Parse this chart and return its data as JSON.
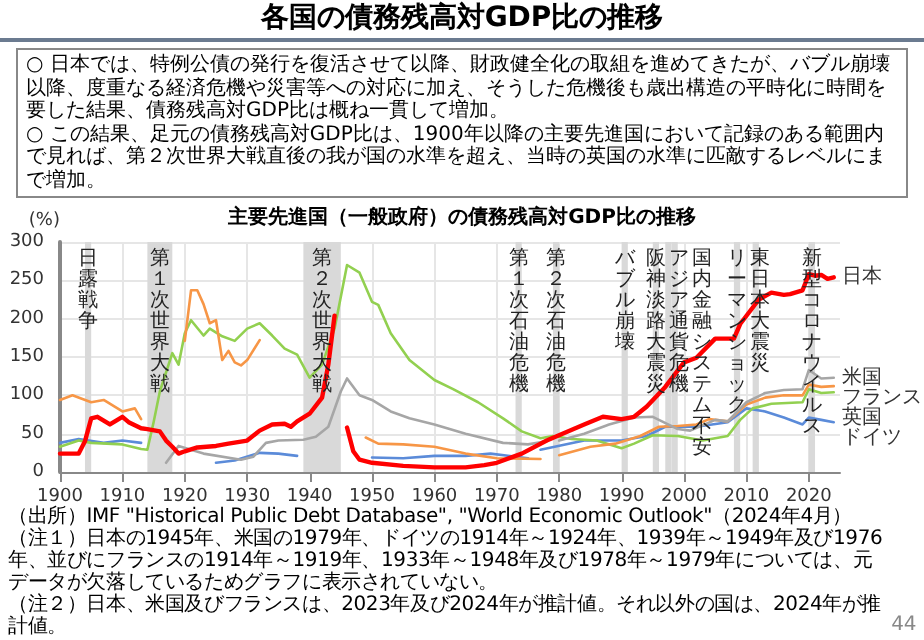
{
  "chart_data": {
    "type": "line",
    "title": "各国の債務残高対GDP比の推移",
    "subtitle": "主要先進国（一般政府）の債務残高対GDP比の推移",
    "ylabel": "(%)",
    "xlim": [
      1900,
      2025
    ],
    "xticks": [
      1900,
      1910,
      1920,
      1930,
      1940,
      1950,
      1960,
      1970,
      1980,
      1990,
      2000,
      2010,
      2020
    ],
    "ylim": [
      0,
      300
    ],
    "yticks": [
      0,
      50,
      100,
      150,
      200,
      250,
      300
    ],
    "grid": true,
    "marker": "none",
    "series": [
      {
        "name": "日本",
        "color": "#ff0000",
        "x": [
          1900,
          1903,
          1904,
          1905,
          1906,
          1908,
          1910,
          1911,
          1913,
          1914,
          1916,
          1917,
          1918,
          1919,
          1920,
          1922,
          1925,
          1927,
          1930,
          1932,
          1934,
          1936,
          1937,
          1938,
          1940,
          1942,
          1943,
          1944,
          1945,
          1946,
          1947,
          1948,
          1950,
          1955,
          1960,
          1965,
          1968,
          1970,
          1974,
          1978,
          1984,
          1987,
          1990,
          1992,
          1994,
          1997,
          2000,
          2002,
          2005,
          2008,
          2009,
          2012,
          2014,
          2016,
          2017,
          2019,
          2020,
          2021,
          2022,
          2023,
          2024
        ],
        "values": [
          24,
          24,
          40,
          70,
          72,
          62,
          72,
          65,
          57,
          56,
          53,
          41,
          33,
          24,
          27,
          32,
          34,
          37,
          41,
          54,
          62,
          63,
          59,
          66,
          76,
          97,
          140,
          204,
          null,
          58,
          27,
          16,
          12,
          8,
          6,
          6,
          9,
          12,
          24,
          41,
          62,
          72,
          69,
          72,
          85,
          111,
          143,
          149,
          174,
          174,
          193,
          225,
          234,
          231,
          232,
          237,
          258,
          256,
          257,
          252,
          254
        ]
      },
      {
        "name": "米国",
        "color": "#a6a6a6",
        "x": [
          1917,
          1919,
          1923,
          1929,
          1931,
          1933,
          1935,
          1939,
          1941,
          1943,
          1945,
          1946,
          1948,
          1950,
          1953,
          1956,
          1960,
          1965,
          1971,
          1975,
          1978,
          1979,
          1980,
          1984,
          1988,
          1992,
          1995,
          1999,
          2001,
          2005,
          2007,
          2010,
          2013,
          2016,
          2019,
          2020,
          2022,
          2024
        ],
        "values": [
          12,
          34,
          24,
          16,
          20,
          38,
          41,
          42,
          46,
          59,
          105,
          122,
          100,
          94,
          79,
          70,
          62,
          50,
          38,
          36,
          40,
          null,
          41,
          50,
          62,
          71,
          72,
          56,
          54,
          68,
          66,
          91,
          103,
          107,
          108,
          133,
          122,
          123
        ]
      },
      {
        "name": "フランス",
        "color": "#f79646",
        "x": [
          1900,
          1902,
          1905,
          1907,
          1910,
          1912,
          1913,
          1914,
          1920,
          1921,
          1922,
          1923,
          1924,
          1925,
          1926,
          1927,
          1928,
          1929,
          1930,
          1932,
          1933,
          1949,
          1951,
          1955,
          1960,
          1965,
          1970,
          1977,
          1978,
          1980,
          1985,
          1989,
          1993,
          1996,
          1999,
          2002,
          2004,
          2007,
          2010,
          2013,
          2016,
          2019,
          2020,
          2022,
          2024
        ],
        "values": [
          94,
          100,
          91,
          94,
          79,
          83,
          69,
          null,
          171,
          237,
          237,
          219,
          194,
          198,
          146,
          158,
          143,
          139,
          146,
          172,
          null,
          45,
          37,
          36,
          33,
          24,
          18,
          17,
          null,
          22,
          33,
          37,
          47,
          59,
          60,
          62,
          69,
          66,
          88,
          97,
          100,
          100,
          114,
          111,
          112
        ]
      },
      {
        "name": "英国",
        "color": "#92d050",
        "x": [
          1900,
          1903,
          1905,
          1910,
          1913,
          1914,
          1915,
          1916,
          1918,
          1919,
          1920,
          1921,
          1923,
          1924,
          1926,
          1928,
          1930,
          1932,
          1934,
          1936,
          1938,
          1940,
          1942,
          1944,
          1946,
          1948,
          1950,
          1951,
          1953,
          1956,
          1960,
          1963,
          1967,
          1971,
          1974,
          1977,
          1979,
          1982,
          1986,
          1990,
          1992,
          1995,
          1999,
          2003,
          2007,
          2009,
          2011,
          2014,
          2019,
          2020,
          2022,
          2024
        ],
        "values": [
          33,
          41,
          38,
          36,
          30,
          29,
          65,
          105,
          155,
          140,
          181,
          198,
          178,
          187,
          177,
          171,
          187,
          194,
          178,
          161,
          153,
          123,
          140,
          187,
          270,
          260,
          222,
          218,
          181,
          146,
          120,
          108,
          91,
          70,
          53,
          44,
          47,
          43,
          41,
          31,
          37,
          48,
          47,
          41,
          47,
          68,
          83,
          89,
          91,
          108,
          103,
          104
        ]
      },
      {
        "name": "ドイツ",
        "color": "#5b8bd9",
        "x": [
          1900,
          1903,
          1907,
          1910,
          1913,
          1914,
          1925,
          1928,
          1932,
          1935,
          1938,
          1939,
          1950,
          1955,
          1960,
          1965,
          1969,
          1975,
          1976,
          1977,
          1984,
          1990,
          1994,
          1997,
          2002,
          2007,
          2010,
          2013,
          2016,
          2019,
          2020,
          2022,
          2024
        ],
        "values": [
          38,
          43,
          38,
          41,
          38,
          null,
          12,
          15,
          25,
          24,
          21,
          null,
          19,
          18,
          21,
          21,
          24,
          18,
          null,
          29,
          41,
          41,
          47,
          59,
          59,
          65,
          83,
          79,
          71,
          62,
          71,
          68,
          65
        ]
      }
    ],
    "bands": [
      {
        "axis": "x",
        "from": 1904,
        "to": 1905,
        "label": "日露戦争",
        "color": "#d9d9d9"
      },
      {
        "axis": "x",
        "from": 1914,
        "to": 1918,
        "label": "第１次世界大戦",
        "color": "#d9d9d9"
      },
      {
        "axis": "x",
        "from": 1939,
        "to": 1945,
        "label": "第２次世界大戦",
        "color": "#d9d9d9"
      },
      {
        "axis": "x",
        "from": 1973,
        "to": 1974,
        "label": "第１次石油危機",
        "color": "#d9d9d9"
      },
      {
        "axis": "x",
        "from": 1979,
        "to": 1980,
        "label": "第２次石油危機",
        "color": "#d9d9d9"
      },
      {
        "axis": "x",
        "from": 1990,
        "to": 1991,
        "label": "バブル崩壊",
        "color": "#d9d9d9"
      },
      {
        "axis": "x",
        "from": 1995,
        "to": 1996,
        "label": "阪神淡路大震災",
        "color": "#d9d9d9"
      },
      {
        "axis": "x",
        "from": 1997,
        "to": 1998,
        "label": "アジア通貨危機",
        "color": "#d9d9d9"
      },
      {
        "axis": "x",
        "from": 1998,
        "to": 1999,
        "label": "国内金融システム不安",
        "color": "#d9d9d9"
      },
      {
        "axis": "x",
        "from": 2008,
        "to": 2009,
        "label": "リーマンショック",
        "color": "#d9d9d9"
      },
      {
        "axis": "x",
        "from": 2011,
        "to": 2012,
        "label": "東日本大震災",
        "color": "#d9d9d9"
      },
      {
        "axis": "x",
        "from": 2020,
        "to": 2021,
        "label": "新型コロナウイルス",
        "color": "#d9d9d9"
      }
    ],
    "annotations": [
      "○ 日本では、特例公債の発行を復活させて以降、財政健全化の取組を進めてきたが、バブル崩壊以降、度重なる経済危機や災害等への対応に加え、そうした危機後も歳出構造の平時化に時間を要した結果、債務残高対GDP比は概ね一貫して増加。",
      "○ この結果、足元の債務残高対GDP比は、1900年以降の主要先進国において記録のある範囲内で見れば、第２次世界大戦直後の我が国の水準を超え、当時の英国の水準に匹敵するレベルにまで増加。",
      "（出所）IMF \"Historical Public Debt Database\", \"World Economic Outlook\"（2024年4月）",
      "（注１）日本の1945年、米国の1979年、ドイツの1914年～1924年、1939年～1949年及び1976年、並びにフランスの1914年～1919年、1933年～1948年及び1978年～1979年については、元データが欠落しているためグラフに表示されていない。",
      "（注２）日本、米国及びフランスは、2023年及び2024年が推計値。それ以外の国は、2024年が推計値。",
      "44"
    ]
  }
}
